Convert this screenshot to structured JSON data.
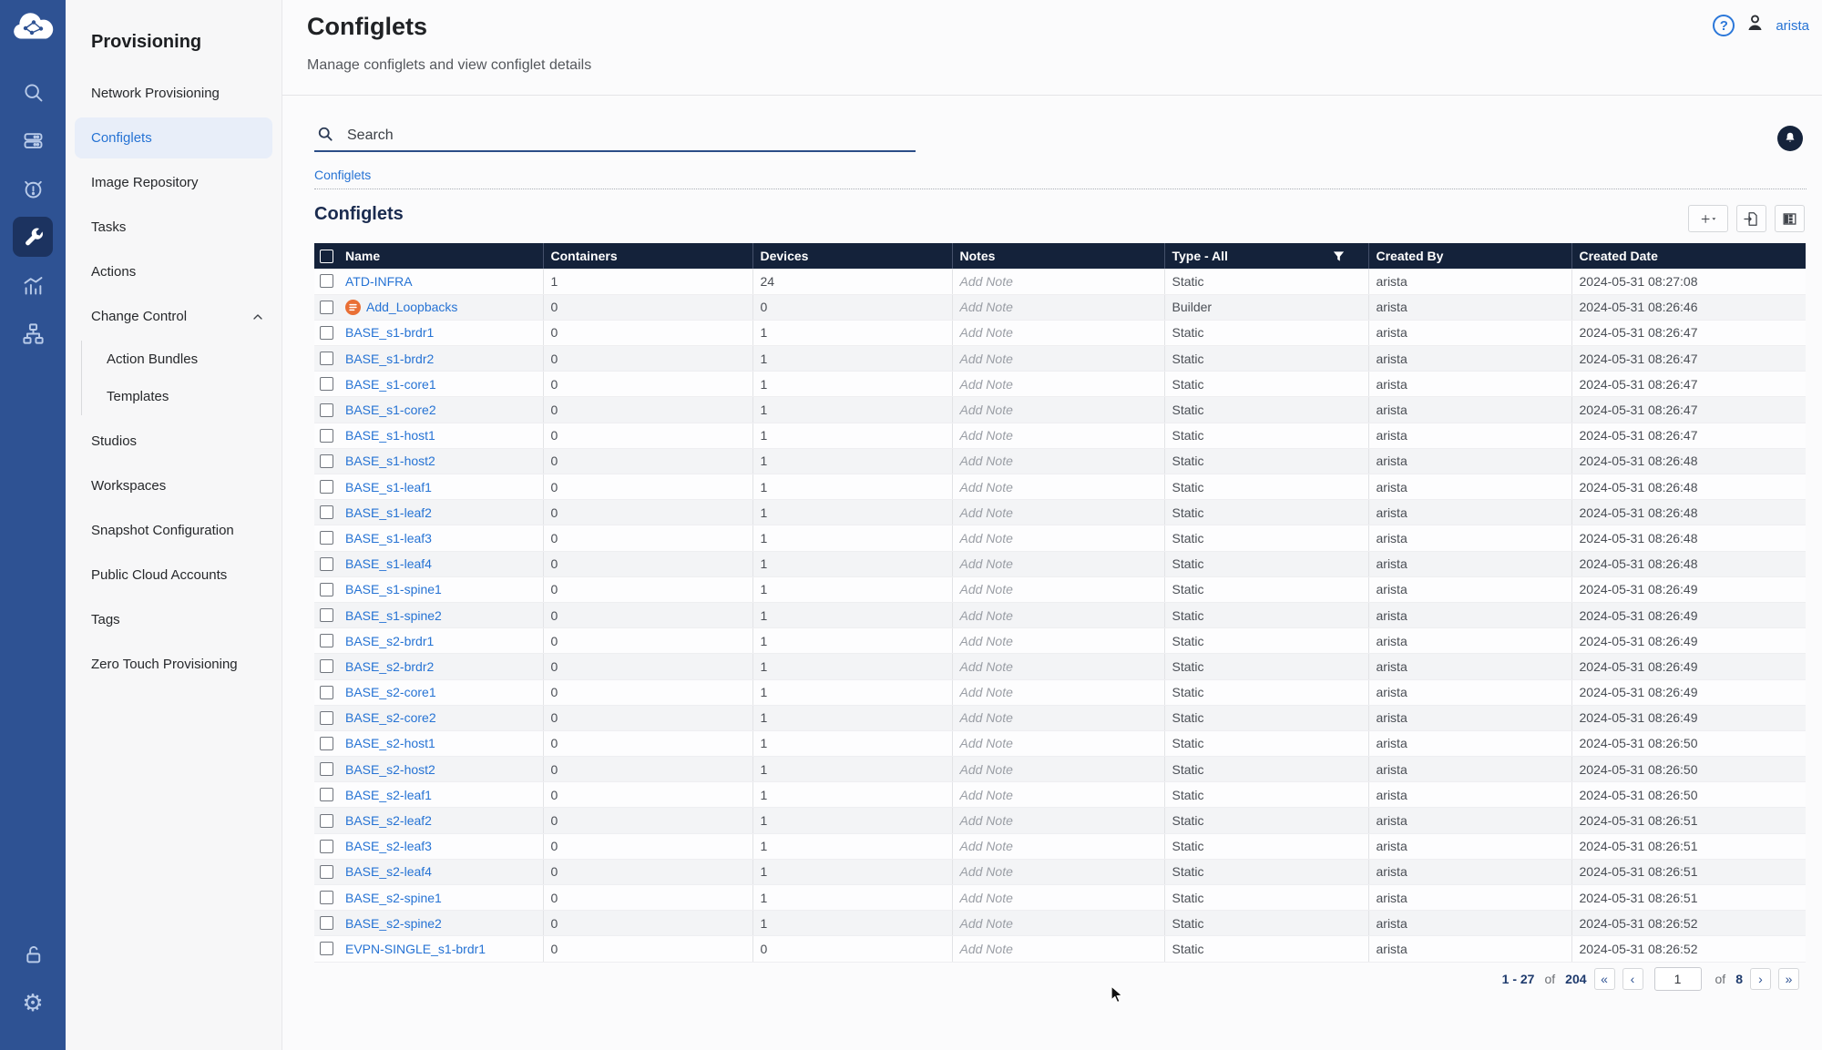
{
  "colors": {
    "rail_blue": "#2e5293",
    "rail_active": "#1c3360",
    "link_blue": "#2673d4",
    "table_header_navy": "#14223a",
    "builder_orange": "#e87c4f",
    "active_item_bg": "#e8eef9"
  },
  "rail": {
    "logo": "cloudvision-logo",
    "items": [
      {
        "name": "search-icon"
      },
      {
        "name": "devices-icon"
      },
      {
        "name": "events-icon"
      },
      {
        "name": "provisioning-icon",
        "active": true
      },
      {
        "name": "metrics-icon"
      },
      {
        "name": "topology-icon"
      }
    ],
    "bottom_items": [
      {
        "name": "unlock-icon"
      },
      {
        "name": "settings-icon"
      }
    ]
  },
  "sidebar": {
    "title": "Provisioning",
    "items": [
      {
        "label": "Network Provisioning"
      },
      {
        "label": "Configlets",
        "active": true
      },
      {
        "label": "Image Repository"
      },
      {
        "label": "Tasks"
      },
      {
        "label": "Actions"
      },
      {
        "label": "Change Control",
        "expandable": true,
        "expanded": true,
        "children": [
          "Action Bundles",
          "Templates"
        ]
      },
      {
        "label": "Studios"
      },
      {
        "label": "Workspaces"
      },
      {
        "label": "Snapshot Configuration"
      },
      {
        "label": "Public Cloud Accounts"
      },
      {
        "label": "Tags"
      },
      {
        "label": "Zero Touch Provisioning"
      }
    ]
  },
  "header": {
    "title": "Configlets",
    "subtitle": "Manage configlets and view configlet details",
    "help_glyph": "?",
    "user": "arista"
  },
  "search": {
    "placeholder": "Search"
  },
  "breadcrumb": {
    "label": "Configlets"
  },
  "section": {
    "title": "Configlets"
  },
  "toolbar": {
    "icons": [
      "add-configlet-button",
      "export-button",
      "columns-button"
    ]
  },
  "table": {
    "columns": [
      "Name",
      "Containers",
      "Devices",
      "Notes",
      "Type - All",
      "Created By",
      "Created Date"
    ],
    "note_placeholder": "Add Note",
    "rows": [
      {
        "name": "ATD-INFRA",
        "containers": "1",
        "devices": "24",
        "notes": "Add Note",
        "type": "Static",
        "created_by": "arista",
        "created_date": "2024-05-31 08:27:08"
      },
      {
        "name": "Add_Loopbacks",
        "builder_icon": true,
        "containers": "0",
        "devices": "0",
        "notes": "Add Note",
        "type": "Builder",
        "created_by": "arista",
        "created_date": "2024-05-31 08:26:46"
      },
      {
        "name": "BASE_s1-brdr1",
        "containers": "0",
        "devices": "1",
        "notes": "Add Note",
        "type": "Static",
        "created_by": "arista",
        "created_date": "2024-05-31 08:26:47"
      },
      {
        "name": "BASE_s1-brdr2",
        "containers": "0",
        "devices": "1",
        "notes": "Add Note",
        "type": "Static",
        "created_by": "arista",
        "created_date": "2024-05-31 08:26:47"
      },
      {
        "name": "BASE_s1-core1",
        "containers": "0",
        "devices": "1",
        "notes": "Add Note",
        "type": "Static",
        "created_by": "arista",
        "created_date": "2024-05-31 08:26:47"
      },
      {
        "name": "BASE_s1-core2",
        "containers": "0",
        "devices": "1",
        "notes": "Add Note",
        "type": "Static",
        "created_by": "arista",
        "created_date": "2024-05-31 08:26:47"
      },
      {
        "name": "BASE_s1-host1",
        "containers": "0",
        "devices": "1",
        "notes": "Add Note",
        "type": "Static",
        "created_by": "arista",
        "created_date": "2024-05-31 08:26:47"
      },
      {
        "name": "BASE_s1-host2",
        "containers": "0",
        "devices": "1",
        "notes": "Add Note",
        "type": "Static",
        "created_by": "arista",
        "created_date": "2024-05-31 08:26:48"
      },
      {
        "name": "BASE_s1-leaf1",
        "containers": "0",
        "devices": "1",
        "notes": "Add Note",
        "type": "Static",
        "created_by": "arista",
        "created_date": "2024-05-31 08:26:48"
      },
      {
        "name": "BASE_s1-leaf2",
        "containers": "0",
        "devices": "1",
        "notes": "Add Note",
        "type": "Static",
        "created_by": "arista",
        "created_date": "2024-05-31 08:26:48"
      },
      {
        "name": "BASE_s1-leaf3",
        "containers": "0",
        "devices": "1",
        "notes": "Add Note",
        "type": "Static",
        "created_by": "arista",
        "created_date": "2024-05-31 08:26:48"
      },
      {
        "name": "BASE_s1-leaf4",
        "containers": "0",
        "devices": "1",
        "notes": "Add Note",
        "type": "Static",
        "created_by": "arista",
        "created_date": "2024-05-31 08:26:48"
      },
      {
        "name": "BASE_s1-spine1",
        "containers": "0",
        "devices": "1",
        "notes": "Add Note",
        "type": "Static",
        "created_by": "arista",
        "created_date": "2024-05-31 08:26:49"
      },
      {
        "name": "BASE_s1-spine2",
        "containers": "0",
        "devices": "1",
        "notes": "Add Note",
        "type": "Static",
        "created_by": "arista",
        "created_date": "2024-05-31 08:26:49"
      },
      {
        "name": "BASE_s2-brdr1",
        "containers": "0",
        "devices": "1",
        "notes": "Add Note",
        "type": "Static",
        "created_by": "arista",
        "created_date": "2024-05-31 08:26:49"
      },
      {
        "name": "BASE_s2-brdr2",
        "containers": "0",
        "devices": "1",
        "notes": "Add Note",
        "type": "Static",
        "created_by": "arista",
        "created_date": "2024-05-31 08:26:49"
      },
      {
        "name": "BASE_s2-core1",
        "containers": "0",
        "devices": "1",
        "notes": "Add Note",
        "type": "Static",
        "created_by": "arista",
        "created_date": "2024-05-31 08:26:49"
      },
      {
        "name": "BASE_s2-core2",
        "containers": "0",
        "devices": "1",
        "notes": "Add Note",
        "type": "Static",
        "created_by": "arista",
        "created_date": "2024-05-31 08:26:49"
      },
      {
        "name": "BASE_s2-host1",
        "containers": "0",
        "devices": "1",
        "notes": "Add Note",
        "type": "Static",
        "created_by": "arista",
        "created_date": "2024-05-31 08:26:50"
      },
      {
        "name": "BASE_s2-host2",
        "containers": "0",
        "devices": "1",
        "notes": "Add Note",
        "type": "Static",
        "created_by": "arista",
        "created_date": "2024-05-31 08:26:50"
      },
      {
        "name": "BASE_s2-leaf1",
        "containers": "0",
        "devices": "1",
        "notes": "Add Note",
        "type": "Static",
        "created_by": "arista",
        "created_date": "2024-05-31 08:26:50"
      },
      {
        "name": "BASE_s2-leaf2",
        "containers": "0",
        "devices": "1",
        "notes": "Add Note",
        "type": "Static",
        "created_by": "arista",
        "created_date": "2024-05-31 08:26:51"
      },
      {
        "name": "BASE_s2-leaf3",
        "containers": "0",
        "devices": "1",
        "notes": "Add Note",
        "type": "Static",
        "created_by": "arista",
        "created_date": "2024-05-31 08:26:51"
      },
      {
        "name": "BASE_s2-leaf4",
        "containers": "0",
        "devices": "1",
        "notes": "Add Note",
        "type": "Static",
        "created_by": "arista",
        "created_date": "2024-05-31 08:26:51"
      },
      {
        "name": "BASE_s2-spine1",
        "containers": "0",
        "devices": "1",
        "notes": "Add Note",
        "type": "Static",
        "created_by": "arista",
        "created_date": "2024-05-31 08:26:51"
      },
      {
        "name": "BASE_s2-spine2",
        "containers": "0",
        "devices": "1",
        "notes": "Add Note",
        "type": "Static",
        "created_by": "arista",
        "created_date": "2024-05-31 08:26:52"
      },
      {
        "name": "EVPN-SINGLE_s1-brdr1",
        "containers": "0",
        "devices": "0",
        "notes": "Add Note",
        "type": "Static",
        "created_by": "arista",
        "created_date": "2024-05-31 08:26:52"
      }
    ]
  },
  "pagination": {
    "range": "1 - 27",
    "of_label": "of",
    "total": "204",
    "page": "1",
    "total_pages": "8"
  }
}
